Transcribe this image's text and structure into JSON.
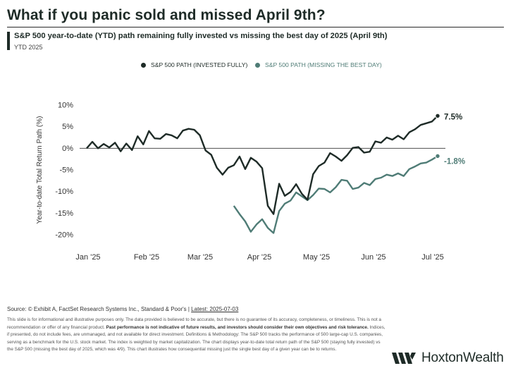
{
  "header": {
    "title": "What if you panic sold and missed April 9th?",
    "subtitle": "S&P 500 year-to-date (YTD) path remaining fully invested vs missing the best day of 2025 (April 9th)",
    "subtitle2": "YTD 2025"
  },
  "colors": {
    "invested": "#1e2b27",
    "missing": "#4f7c76",
    "zero_line": "#333333",
    "brand": "#1e2b27"
  },
  "chart_data": {
    "type": "line",
    "ylabel": "Year-to-date Total Return Path (%)",
    "xlabel": "",
    "ylim": [
      -22,
      10
    ],
    "yticks": [
      10,
      5,
      0,
      -5,
      -10,
      -15,
      -20
    ],
    "ytick_labels": [
      "10%",
      "5%",
      "0%",
      "-5%",
      "-10%",
      "-15%",
      "-20%"
    ],
    "xtick_labels": [
      "Jan '25",
      "Feb '25",
      "Mar '25",
      "Apr '25",
      "May '25",
      "Jun '25",
      "Jul '25"
    ],
    "legend_position": "top-center",
    "series": [
      {
        "name": "S&P 500 PATH (INVESTED FULLY)",
        "end_label": "7.5%",
        "values": [
          0.0,
          1.5,
          0.0,
          1.0,
          0.2,
          1.3,
          -0.7,
          1.1,
          -0.4,
          2.8,
          0.9,
          4.0,
          2.3,
          2.2,
          3.3,
          3.0,
          2.3,
          4.1,
          4.5,
          4.3,
          3.0,
          -0.5,
          -1.5,
          -4.5,
          -6.1,
          -4.5,
          -3.9,
          -1.9,
          -4.8,
          -2.2,
          -3.1,
          -4.6,
          -13.3,
          -15.2,
          -8.2,
          -11.0,
          -10.1,
          -8.3,
          -10.5,
          -11.9,
          -6.0,
          -4.1,
          -3.3,
          -1.1,
          -1.9,
          -2.9,
          -1.6,
          0.1,
          0.3,
          -1.0,
          -0.8,
          1.6,
          1.3,
          2.5,
          2.0,
          2.9,
          2.1,
          3.7,
          4.4,
          5.4,
          5.8,
          6.2,
          7.5
        ]
      },
      {
        "name": "S&P 500 PATH (MISSING THE BEST DAY)",
        "end_label": "-1.8%",
        "values": [
          -13.3,
          -15.2,
          -16.9,
          -19.3,
          -17.6,
          -16.4,
          -18.4,
          -19.6,
          -14.5,
          -12.8,
          -12.1,
          -10.2,
          -11.1,
          -12.0,
          -10.8,
          -9.3,
          -9.4,
          -10.2,
          -9.0,
          -7.3,
          -7.5,
          -9.4,
          -9.1,
          -8.0,
          -8.5,
          -7.1,
          -6.8,
          -6.1,
          -6.4,
          -5.8,
          -6.4,
          -4.8,
          -4.2,
          -3.5,
          -3.3,
          -2.6,
          -1.8
        ]
      }
    ]
  },
  "footer": {
    "source": "Source: © Exhibit A, FactSet Research Systems Inc., Standard & Poor's | ",
    "latest": "Latest: 2025-07-03",
    "disclaimer_1": "This slide is for informational and illustrative purposes only. The data provided is believed to be accurate, but there is no guarantee of its accuracy, completeness, or timeliness. This is not a recommendation or offer of any financial product. ",
    "disclaimer_bold": "Past performance is not indicative of future results, and investors should consider their own objectives and risk tolerance.",
    "disclaimer_2": " Indices, if presented, do not include fees, are unmanaged, and not available for direct investment. Definitions & Methodology: The S&P 500 tracks the performance of 500 large-cap U.S. companies, serving as a benchmark for the U.S. stock market. The index is weighted by market capitalization. The chart displays year-to-date total return path of the S&P 500 (staying fully invested) vs the S&P 500 (missing the best day of 2025, which was 4/9). This chart illustrates how consequential missing just the single best day of a given year can be to returns."
  },
  "brand": {
    "name": "HoxtonWealth",
    "logo_icon": "hw-monogram-icon"
  }
}
